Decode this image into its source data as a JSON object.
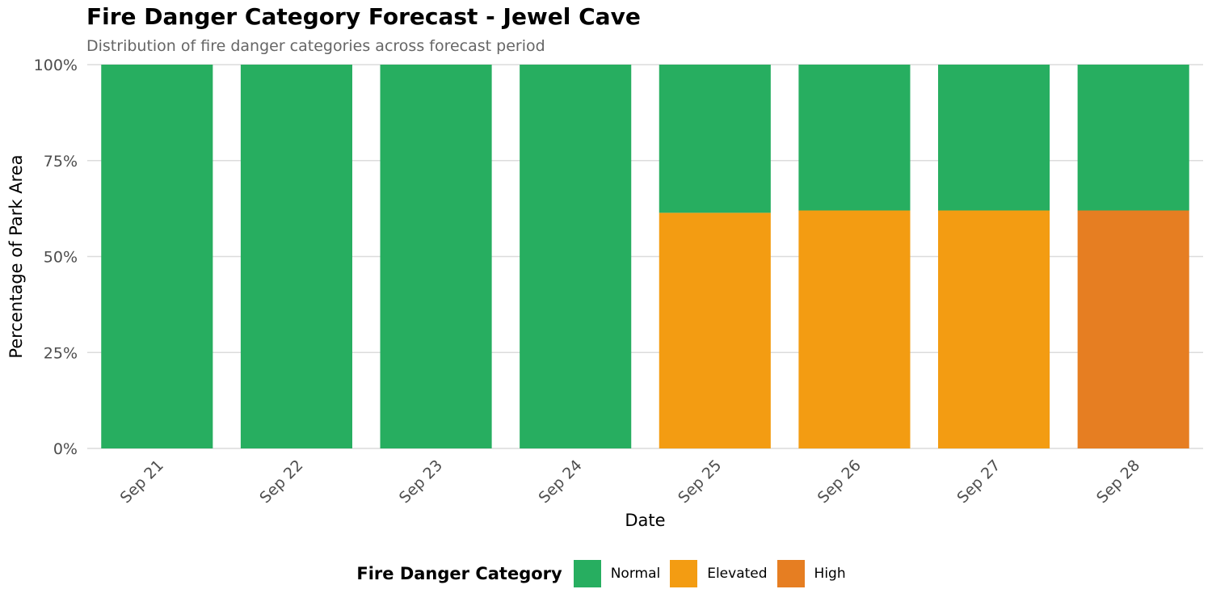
{
  "chart_data": {
    "type": "bar",
    "stacked": true,
    "title": "Fire Danger Category Forecast - Jewel Cave",
    "subtitle": "Distribution of fire danger categories across forecast period",
    "xlabel": "Date",
    "ylabel": "Percentage of Park Area",
    "ylim": [
      0,
      100
    ],
    "yticks": [
      "0%",
      "25%",
      "50%",
      "75%",
      "100%"
    ],
    "ytick_values": [
      0,
      25,
      50,
      75,
      100
    ],
    "categories": [
      "Sep 21",
      "Sep 22",
      "Sep 23",
      "Sep 24",
      "Sep 25",
      "Sep 26",
      "Sep 27",
      "Sep 28"
    ],
    "series": [
      {
        "name": "High",
        "color": "#E67E22",
        "values": [
          0,
          0,
          0,
          0,
          0,
          0,
          0,
          62
        ]
      },
      {
        "name": "Elevated",
        "color": "#F39C12",
        "values": [
          0,
          0,
          0,
          0,
          61.4,
          62,
          62,
          0
        ]
      },
      {
        "name": "Normal",
        "color": "#27AE60",
        "values": [
          100,
          100,
          100,
          100,
          38.6,
          38,
          38,
          38
        ]
      }
    ],
    "legend": {
      "title": "Fire Danger Category",
      "position": "bottom",
      "items": [
        {
          "label": "Normal",
          "color": "#27AE60"
        },
        {
          "label": "Elevated",
          "color": "#F39C12"
        },
        {
          "label": "High",
          "color": "#E67E22"
        }
      ]
    },
    "grid": true
  }
}
